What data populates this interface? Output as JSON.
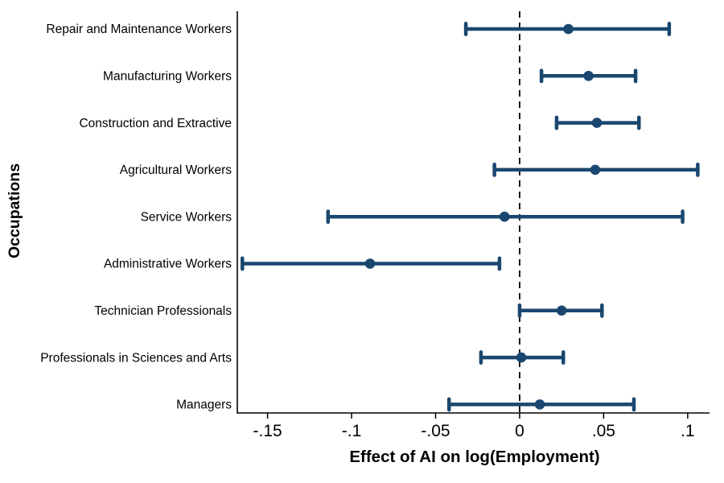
{
  "figure": {
    "xlabel": "Effect of AI on log(Employment)",
    "ylabel": "Occupations"
  },
  "chart_data": {
    "type": "scatter",
    "subtype": "coefficient-plot-with-error-bars",
    "title": "",
    "xlabel": "Effect of AI on log(Employment)",
    "ylabel": "Occupations",
    "grid": false,
    "legend": "none",
    "reference_line_x": 0,
    "reference_line_style": "dashed",
    "marker_color": "#1A476F",
    "axis_color": "#000000",
    "xlim": [
      -0.168,
      0.113
    ],
    "xticks": [
      {
        "value": -0.15,
        "label": "-.15"
      },
      {
        "value": -0.1,
        "label": "-.1"
      },
      {
        "value": -0.05,
        "label": "-.05"
      },
      {
        "value": 0.0,
        "label": "0"
      },
      {
        "value": 0.05,
        "label": ".05"
      },
      {
        "value": 0.1,
        "label": ".1"
      }
    ],
    "points": [
      {
        "label": "Repair and Maintenance Workers",
        "estimate": 0.029,
        "ci_low": -0.032,
        "ci_high": 0.089
      },
      {
        "label": "Manufacturing Workers",
        "estimate": 0.041,
        "ci_low": 0.013,
        "ci_high": 0.069
      },
      {
        "label": "Construction and Extractive",
        "estimate": 0.046,
        "ci_low": 0.022,
        "ci_high": 0.071
      },
      {
        "label": "Agricultural Workers",
        "estimate": 0.045,
        "ci_low": -0.015,
        "ci_high": 0.106
      },
      {
        "label": "Service Workers",
        "estimate": -0.009,
        "ci_low": -0.114,
        "ci_high": 0.097
      },
      {
        "label": "Administrative Workers",
        "estimate": -0.089,
        "ci_low": -0.165,
        "ci_high": -0.012
      },
      {
        "label": "Technician Professionals",
        "estimate": 0.025,
        "ci_low": 0.0,
        "ci_high": 0.049
      },
      {
        "label": "Professionals in Sciences and Arts",
        "estimate": 0.001,
        "ci_low": -0.023,
        "ci_high": 0.026
      },
      {
        "label": "Managers",
        "estimate": 0.012,
        "ci_low": -0.042,
        "ci_high": 0.068
      }
    ]
  }
}
